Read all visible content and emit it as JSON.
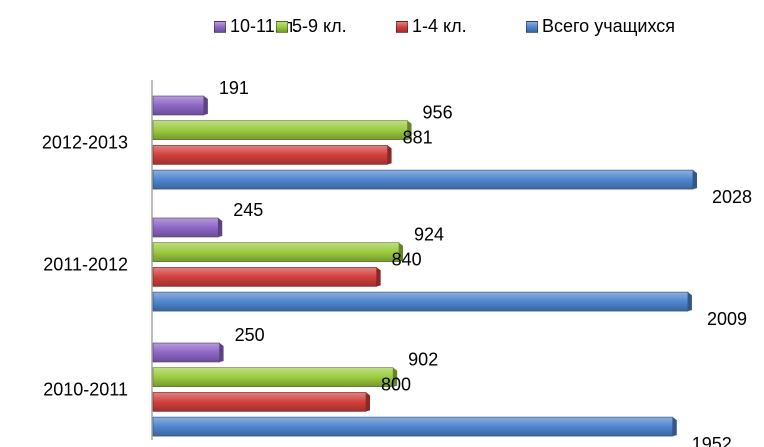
{
  "chart_data": {
    "type": "bar",
    "orientation": "horizontal",
    "title": "",
    "xlabel": "",
    "ylabel": "",
    "categories": [
      "2012-2013",
      "2011-2012",
      "2010-2011"
    ],
    "series": [
      {
        "name": "10-11кл.",
        "color": "#8e67c6",
        "values": [
          191,
          245,
          250
        ]
      },
      {
        "name": "5-9 кл.",
        "color": "#9bcb3f",
        "values": [
          956,
          924,
          902
        ]
      },
      {
        "name": "1-4 кл.",
        "color": "#d2403c",
        "values": [
          881,
          840,
          800
        ]
      },
      {
        "name": "Всего учащихся",
        "color": "#4f86cf",
        "values": [
          2028,
          2009,
          1952
        ]
      }
    ],
    "xlim": [
      0,
      2100
    ],
    "grid": false,
    "legend_position": "top",
    "legend_order": [
      "10-11кл.",
      "5-9 кл.",
      "1-4 кл.",
      "Всего учащихся"
    ]
  }
}
